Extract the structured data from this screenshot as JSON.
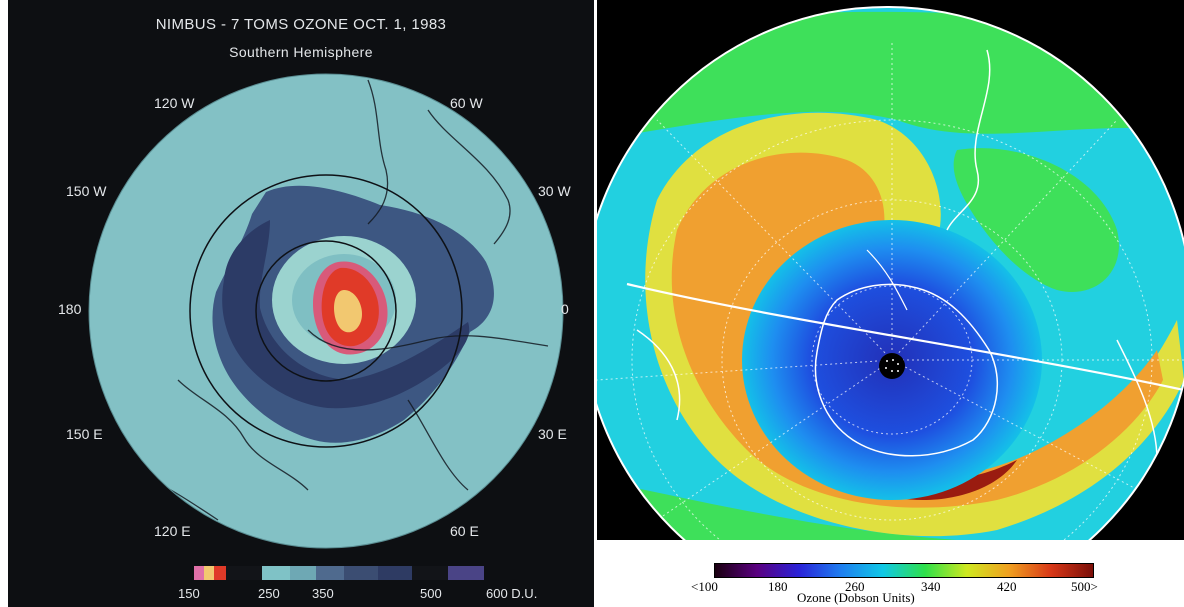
{
  "left_map": {
    "title": "NIMBUS - 7 TOMS OZONE OCT. 1, 1983",
    "subtitle": "Southern Hemisphere",
    "longitude_labels": {
      "w120": "120 W",
      "w60": "60 W",
      "w150": "150 W",
      "w30": "30 W",
      "lon180": "180",
      "lon0": "0",
      "e150": "150 E",
      "e30": "30 E",
      "e120": "120 E",
      "e60": "60 E"
    },
    "legend": {
      "ticks": {
        "t150": "150",
        "t250": "250",
        "t350": "350",
        "t500": "500",
        "t600": "600 D.U."
      },
      "colors": [
        "#e070a8",
        "#f2c870",
        "#e03a28",
        "#121418",
        "#7fc2c6",
        "#6ea8b4",
        "#4f6a8e",
        "#3b4d72",
        "#2e3b63",
        "#121418",
        "#4a4486"
      ]
    },
    "colors": {
      "background": "#0d0f12",
      "disk": "#7fbfc3",
      "ring_light": "#9bd3cf",
      "low_ozone_band": "#3d5782",
      "high_ozone_band": "#2c3b66",
      "hole_red": "#e03a28",
      "hole_yellow": "#f2c870",
      "hole_pink": "#d85a7a"
    }
  },
  "right_map": {
    "colorbar": {
      "ticks": {
        "t100": "<100",
        "t180": "180",
        "t260": "260",
        "t340": "340",
        "t420": "420",
        "t500": "500>"
      },
      "label": "Ozone (Dobson Units)",
      "gradient": [
        "#1a0010",
        "#5a0080",
        "#2a22d8",
        "#1e7ef0",
        "#10c8e6",
        "#2ee04a",
        "#cfe820",
        "#f0a020",
        "#d83818",
        "#7a0e08"
      ]
    },
    "colors": {
      "space": "#000000",
      "globe_base": "#22d0e0",
      "outer_green": "#3ee05a",
      "yellow_band": "#e0e040",
      "orange_band": "#f0a030",
      "red_band": "#9a1c10",
      "hole_blue": "#1e64e6",
      "hole_deep": "#2230b8",
      "coastline": "#ffffff"
    }
  }
}
